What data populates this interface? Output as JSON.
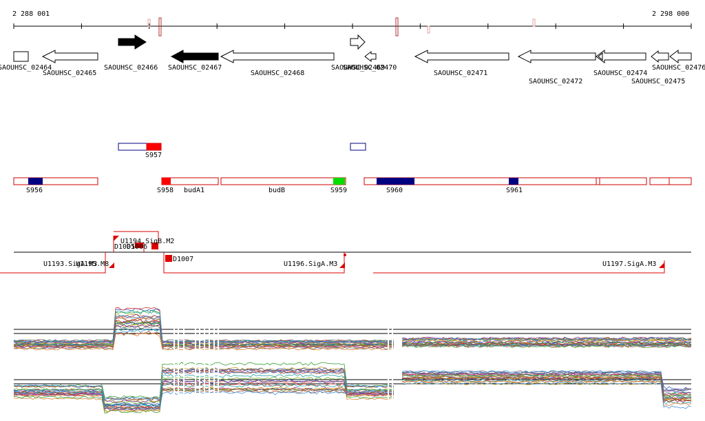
{
  "coordinates": {
    "start": "2 288 001",
    "end": "2 298 000"
  },
  "genes": [
    {
      "label": "SAOUHSC_02464",
      "strand": "+",
      "fill": "white"
    },
    {
      "label": "SAOUHSC_02465",
      "strand": "-",
      "fill": "white"
    },
    {
      "label": "SAOUHSC_02466",
      "strand": "+",
      "fill": "black"
    },
    {
      "label": "SAOUHSC_02467",
      "strand": "-",
      "fill": "black"
    },
    {
      "label": "SAOUHSC_02468",
      "strand": "-",
      "fill": "white"
    },
    {
      "label": "SAOUHSC_02469",
      "strand": "+",
      "fill": "white"
    },
    {
      "label": "SAOUHSC_02470",
      "strand": "-",
      "fill": "white"
    },
    {
      "label": "SAOUHSC_02471",
      "strand": "-",
      "fill": "white"
    },
    {
      "label": "SAOUHSC_02472",
      "strand": "-",
      "fill": "white"
    },
    {
      "label": "SAOUHSC_02474",
      "strand": "-",
      "fill": "white"
    },
    {
      "label": "SAOUHSC_02475",
      "strand": "-",
      "fill": "white"
    },
    {
      "label": "SAOUHSC_02476",
      "strand": "-",
      "fill": "white"
    }
  ],
  "regions": [
    {
      "label": "S957",
      "color": "#ff0000"
    },
    {
      "label": "S956",
      "color": "#000080"
    },
    {
      "label": "S958",
      "color": "#ff0000"
    },
    {
      "label": "budA1",
      "color": "#ffffff"
    },
    {
      "label": "budB",
      "color": "#ffffff"
    },
    {
      "label": "S959",
      "color": "#00dd00"
    },
    {
      "label": "S960",
      "color": "#000080"
    },
    {
      "label": "S961",
      "color": "#000080"
    }
  ],
  "transcription_units": [
    {
      "label": "U1194.SigB.M2"
    },
    {
      "label": "D1005"
    },
    {
      "label": "D1006"
    },
    {
      "label": "D1007"
    },
    {
      "label": "U1193.SigA.M3"
    },
    {
      "label": "U1195.M8"
    },
    {
      "label": "U1196.SigA.M3"
    },
    {
      "label": "U1197.SigA.M3"
    }
  ],
  "colors": {
    "ruler_marker": "#b03030",
    "region_outline": "#cc0000",
    "tu_line": "#dd0000",
    "plus_strand_outline": "#000080"
  },
  "expression_palette": [
    "#3050c0",
    "#d03030",
    "#30a030",
    "#c0a020",
    "#8030a0",
    "#20a0a0",
    "#e08030",
    "#606060",
    "#a05020",
    "#4090e0",
    "#c04080",
    "#70b030"
  ]
}
